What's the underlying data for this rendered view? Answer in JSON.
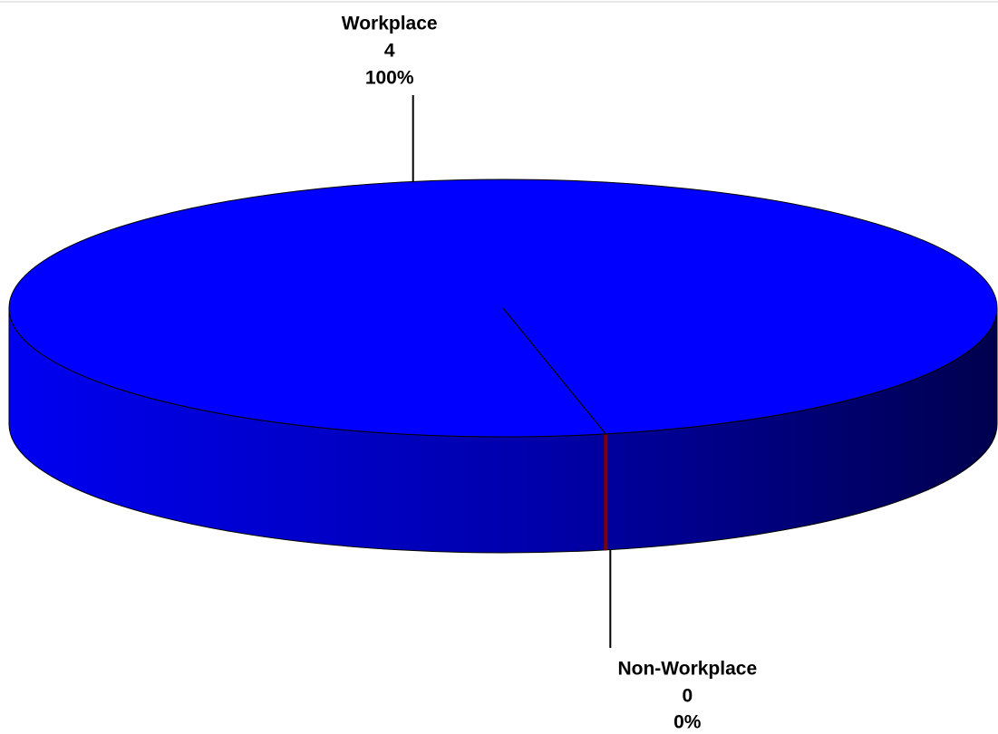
{
  "chart_data": {
    "type": "pie",
    "categories": [
      "Workplace",
      "Non-Workplace"
    ],
    "values": [
      4,
      0
    ],
    "percents": [
      100,
      0
    ],
    "percent_labels": [
      "100%",
      "0%"
    ],
    "colors": [
      "#0000ff",
      "#800000"
    ]
  }
}
